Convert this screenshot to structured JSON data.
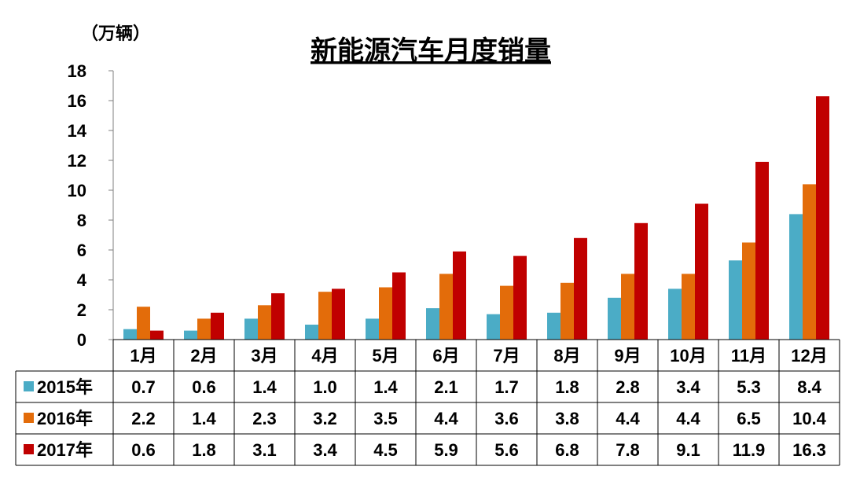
{
  "chart_data": {
    "type": "bar",
    "title": "新能源汽车月度销量",
    "unit_label": "（万辆）",
    "categories": [
      "1月",
      "2月",
      "3月",
      "4月",
      "5月",
      "6月",
      "7月",
      "8月",
      "9月",
      "10月",
      "11月",
      "12月"
    ],
    "series": [
      {
        "name": "2015年",
        "color": "#4BACC6",
        "values": [
          0.7,
          0.6,
          1.4,
          1.0,
          1.4,
          2.1,
          1.7,
          1.8,
          2.8,
          3.4,
          5.3,
          8.4
        ]
      },
      {
        "name": "2016年",
        "color": "#E36C0A",
        "values": [
          2.2,
          1.4,
          2.3,
          3.2,
          3.5,
          4.4,
          3.6,
          3.8,
          4.4,
          4.4,
          6.5,
          10.4
        ]
      },
      {
        "name": "2017年",
        "color": "#C00000",
        "values": [
          0.6,
          1.8,
          3.1,
          3.4,
          4.5,
          5.9,
          5.6,
          6.8,
          7.8,
          9.1,
          11.9,
          16.3
        ]
      }
    ],
    "value_labels": [
      [
        "0.7",
        "0.6",
        "1.4",
        "1.0",
        "1.4",
        "2.1",
        "1.7",
        "1.8",
        "2.8",
        "3.4",
        "5.3",
        "8.4"
      ],
      [
        "2.2",
        "1.4",
        "2.3",
        "3.2",
        "3.5",
        "4.4",
        "3.6",
        "3.8",
        "4.4",
        "4.4",
        "6.5",
        "10.4"
      ],
      [
        "0.6",
        "1.8",
        "3.1",
        "3.4",
        "4.5",
        "5.9",
        "5.6",
        "6.8",
        "7.8",
        "9.1",
        "11.9",
        "16.3"
      ]
    ],
    "ylim": [
      0,
      18
    ],
    "yticks": [
      "0",
      "2",
      "4",
      "6",
      "8",
      "10",
      "12",
      "14",
      "16",
      "18"
    ],
    "grid": false,
    "legend": "data-table"
  }
}
